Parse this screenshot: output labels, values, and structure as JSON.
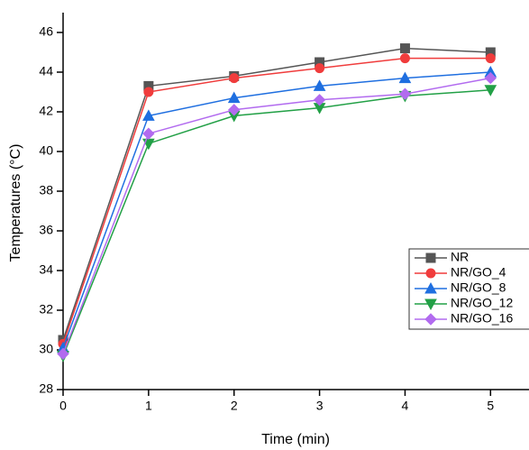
{
  "chart_data": {
    "type": "line",
    "x_label": "Time (min)",
    "y_label": "Temperatures (°C)",
    "x": [
      0,
      1,
      2,
      3,
      4,
      5
    ],
    "xlim": [
      0,
      5.45
    ],
    "xticks": [
      0,
      1,
      2,
      3,
      4,
      5
    ],
    "ylim": [
      28,
      47
    ],
    "yticks": [
      28,
      30,
      32,
      34,
      36,
      38,
      40,
      42,
      44,
      46
    ],
    "legend": "lower-right",
    "series": [
      {
        "name": "NR",
        "color": "#555555",
        "marker": "square",
        "values": [
          30.5,
          43.3,
          43.8,
          44.5,
          45.2,
          45.0
        ]
      },
      {
        "name": "NR/GO_4",
        "color": "#f03c3c",
        "marker": "circle",
        "values": [
          30.3,
          43.0,
          43.7,
          44.2,
          44.7,
          44.7
        ]
      },
      {
        "name": "NR/GO_8",
        "color": "#1f6fe0",
        "marker": "triangle-up",
        "values": [
          30.1,
          41.8,
          42.7,
          43.3,
          43.7,
          44.0
        ]
      },
      {
        "name": "NR/GO_12",
        "color": "#22a046",
        "marker": "triangle-down",
        "values": [
          29.7,
          40.4,
          41.8,
          42.2,
          42.8,
          43.1
        ]
      },
      {
        "name": "NR/GO_16",
        "color": "#b26bef",
        "marker": "diamond",
        "values": [
          29.8,
          40.9,
          42.1,
          42.6,
          42.9,
          43.7
        ]
      }
    ]
  }
}
